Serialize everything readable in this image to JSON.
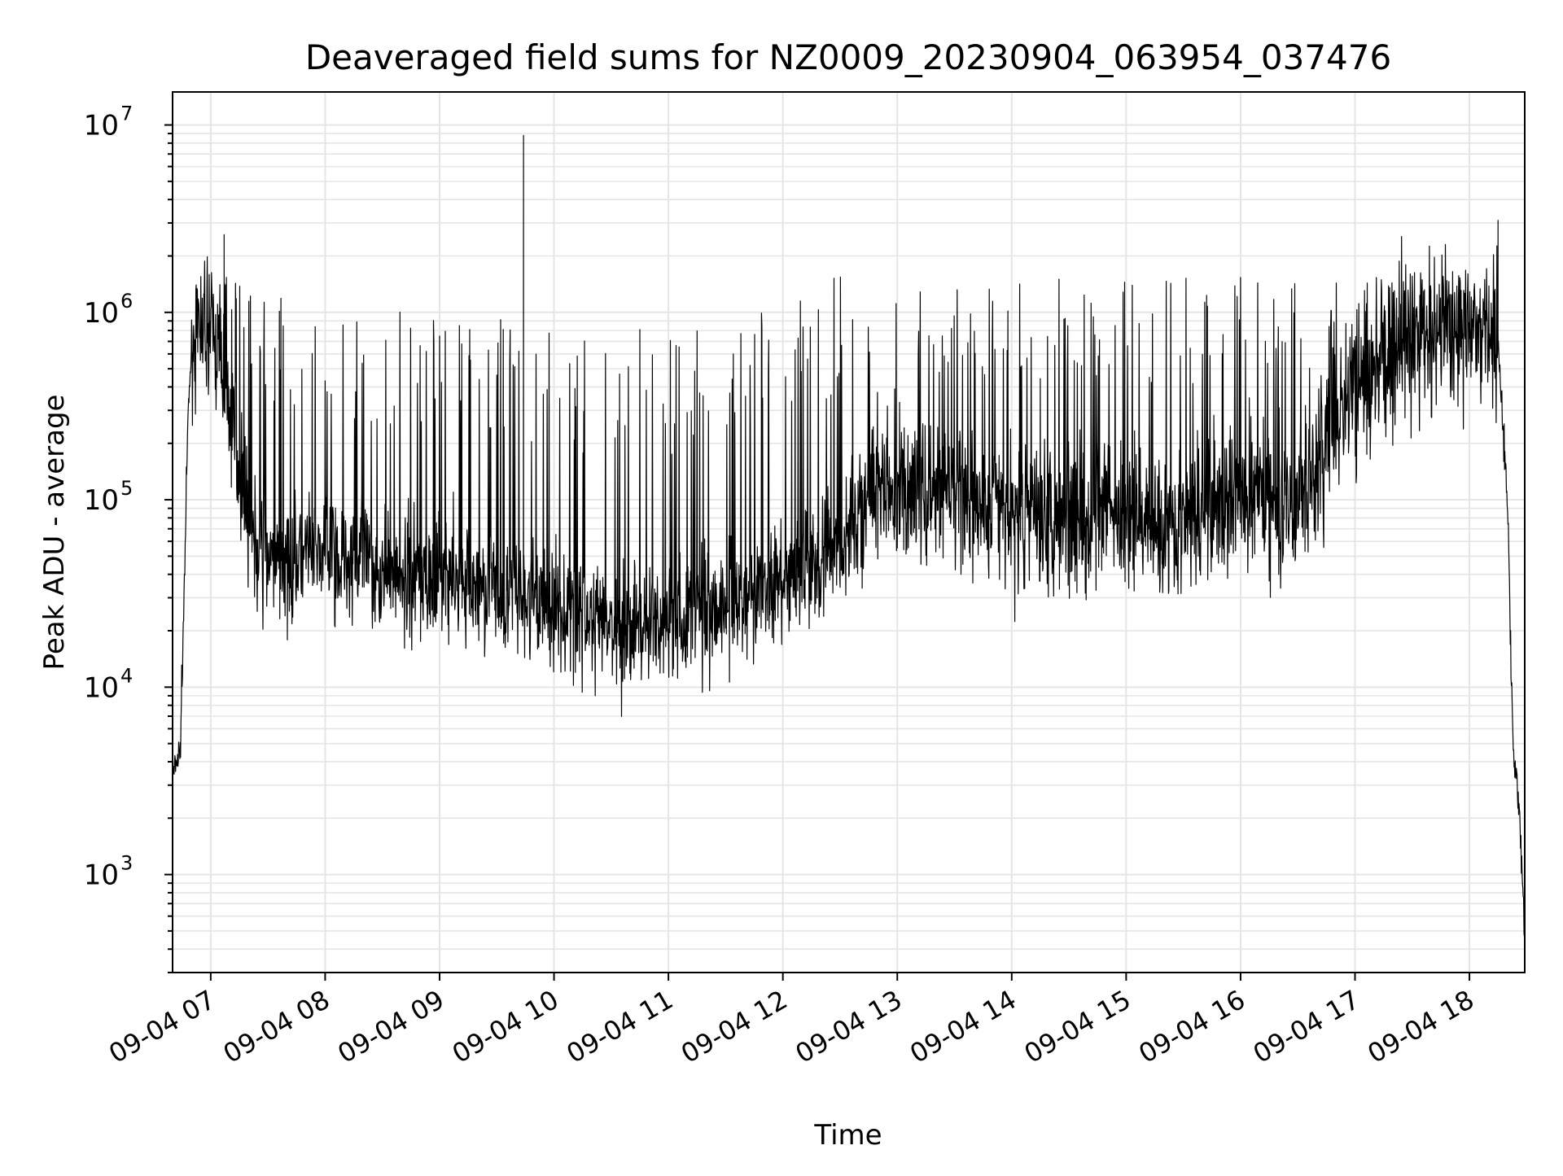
{
  "chart_data": {
    "type": "line",
    "title": "Deaveraged field sums for NZ0009_20230904_063954_037476",
    "xlabel": "Time",
    "ylabel": "Peak ADU - average",
    "yscale": "log",
    "ylim": [
      300,
      15000000
    ],
    "xlim": [
      "2023-09-04 06:40",
      "2023-09-04 18:29"
    ],
    "grid": true,
    "line_color": "#000000",
    "grid_color": "#e5e5e5",
    "x_ticks": [
      {
        "value": "2023-09-04 07:00",
        "label": "09-04 07"
      },
      {
        "value": "2023-09-04 08:00",
        "label": "09-04 08"
      },
      {
        "value": "2023-09-04 09:00",
        "label": "09-04 09"
      },
      {
        "value": "2023-09-04 10:00",
        "label": "09-04 10"
      },
      {
        "value": "2023-09-04 11:00",
        "label": "09-04 11"
      },
      {
        "value": "2023-09-04 12:00",
        "label": "09-04 12"
      },
      {
        "value": "2023-09-04 13:00",
        "label": "09-04 13"
      },
      {
        "value": "2023-09-04 14:00",
        "label": "09-04 14"
      },
      {
        "value": "2023-09-04 15:00",
        "label": "09-04 15"
      },
      {
        "value": "2023-09-04 16:00",
        "label": "09-04 16"
      },
      {
        "value": "2023-09-04 17:00",
        "label": "09-04 17"
      },
      {
        "value": "2023-09-04 18:00",
        "label": "09-04 18"
      }
    ],
    "y_ticks": [
      {
        "value": 1000,
        "base": "10",
        "exp": "3"
      },
      {
        "value": 10000,
        "base": "10",
        "exp": "4"
      },
      {
        "value": 100000,
        "base": "10",
        "exp": "5"
      },
      {
        "value": 1000000,
        "base": "10",
        "exp": "6"
      },
      {
        "value": 10000000,
        "base": "10",
        "exp": "7"
      }
    ],
    "series": [
      {
        "note_baseline": "typical (median-like) level of the trace",
        "baseline": [
          [
            "2023-09-04 06:40",
            3200
          ],
          [
            "2023-09-04 06:42",
            4000
          ],
          [
            "2023-09-04 06:44",
            4500
          ],
          [
            "2023-09-04 06:46",
            30000
          ],
          [
            "2023-09-04 06:48",
            250000
          ],
          [
            "2023-09-04 06:50",
            700000
          ],
          [
            "2023-09-04 07:00",
            900000
          ],
          [
            "2023-09-04 07:08",
            400000
          ],
          [
            "2023-09-04 07:15",
            150000
          ],
          [
            "2023-09-04 07:25",
            50000
          ],
          [
            "2023-09-04 07:35",
            40000
          ],
          [
            "2023-09-04 08:00",
            55000
          ],
          [
            "2023-09-04 08:30",
            40000
          ],
          [
            "2023-09-04 09:00",
            38000
          ],
          [
            "2023-09-04 09:30",
            32000
          ],
          [
            "2023-09-04 10:00",
            27000
          ],
          [
            "2023-09-04 10:30",
            20000
          ],
          [
            "2023-09-04 11:00",
            23000
          ],
          [
            "2023-09-04 11:30",
            28000
          ],
          [
            "2023-09-04 12:00",
            35000
          ],
          [
            "2023-09-04 12:30",
            60000
          ],
          [
            "2023-09-04 12:50",
            120000
          ],
          [
            "2023-09-04 13:30",
            100000
          ],
          [
            "2023-09-04 14:00",
            80000
          ],
          [
            "2023-09-04 14:30",
            85000
          ],
          [
            "2023-09-04 15:00",
            80000
          ],
          [
            "2023-09-04 15:30",
            75000
          ],
          [
            "2023-09-04 16:00",
            110000
          ],
          [
            "2023-09-04 16:30",
            90000
          ],
          [
            "2023-09-04 17:00",
            400000
          ],
          [
            "2023-09-04 17:30",
            700000
          ],
          [
            "2023-09-04 18:00",
            800000
          ],
          [
            "2023-09-04 18:15",
            700000
          ],
          [
            "2023-09-04 18:20",
            100000
          ],
          [
            "2023-09-04 18:23",
            4500
          ],
          [
            "2023-09-04 18:26",
            2500
          ],
          [
            "2023-09-04 18:29",
            450
          ]
        ],
        "spike_envelope": [
          [
            "2023-09-04 06:50",
            1800000
          ],
          [
            "2023-09-04 07:30",
            1300000
          ],
          [
            "2023-09-04 08:00",
            1100000
          ],
          [
            "2023-09-04 09:00",
            1000000
          ],
          [
            "2023-09-04 10:00",
            850000
          ],
          [
            "2023-09-04 10:30",
            800000
          ],
          [
            "2023-09-04 11:00",
            850000
          ],
          [
            "2023-09-04 11:30",
            900000
          ],
          [
            "2023-09-04 12:00",
            1200000
          ],
          [
            "2023-09-04 12:30",
            1600000
          ],
          [
            "2023-09-04 13:30",
            1600000
          ],
          [
            "2023-09-04 15:00",
            1500000
          ],
          [
            "2023-09-04 16:00",
            1600000
          ],
          [
            "2023-09-04 17:00",
            1500000
          ],
          [
            "2023-09-04 18:00",
            1600000
          ],
          [
            "2023-09-04 18:15",
            2500000
          ]
        ],
        "notable_points": [
          [
            "2023-09-04 07:07",
            2600000
          ],
          [
            "2023-09-04 09:44",
            8800000
          ],
          [
            "2023-09-04 18:15",
            3100000
          ],
          [
            "2023-09-04 18:29",
            450
          ]
        ]
      }
    ]
  }
}
